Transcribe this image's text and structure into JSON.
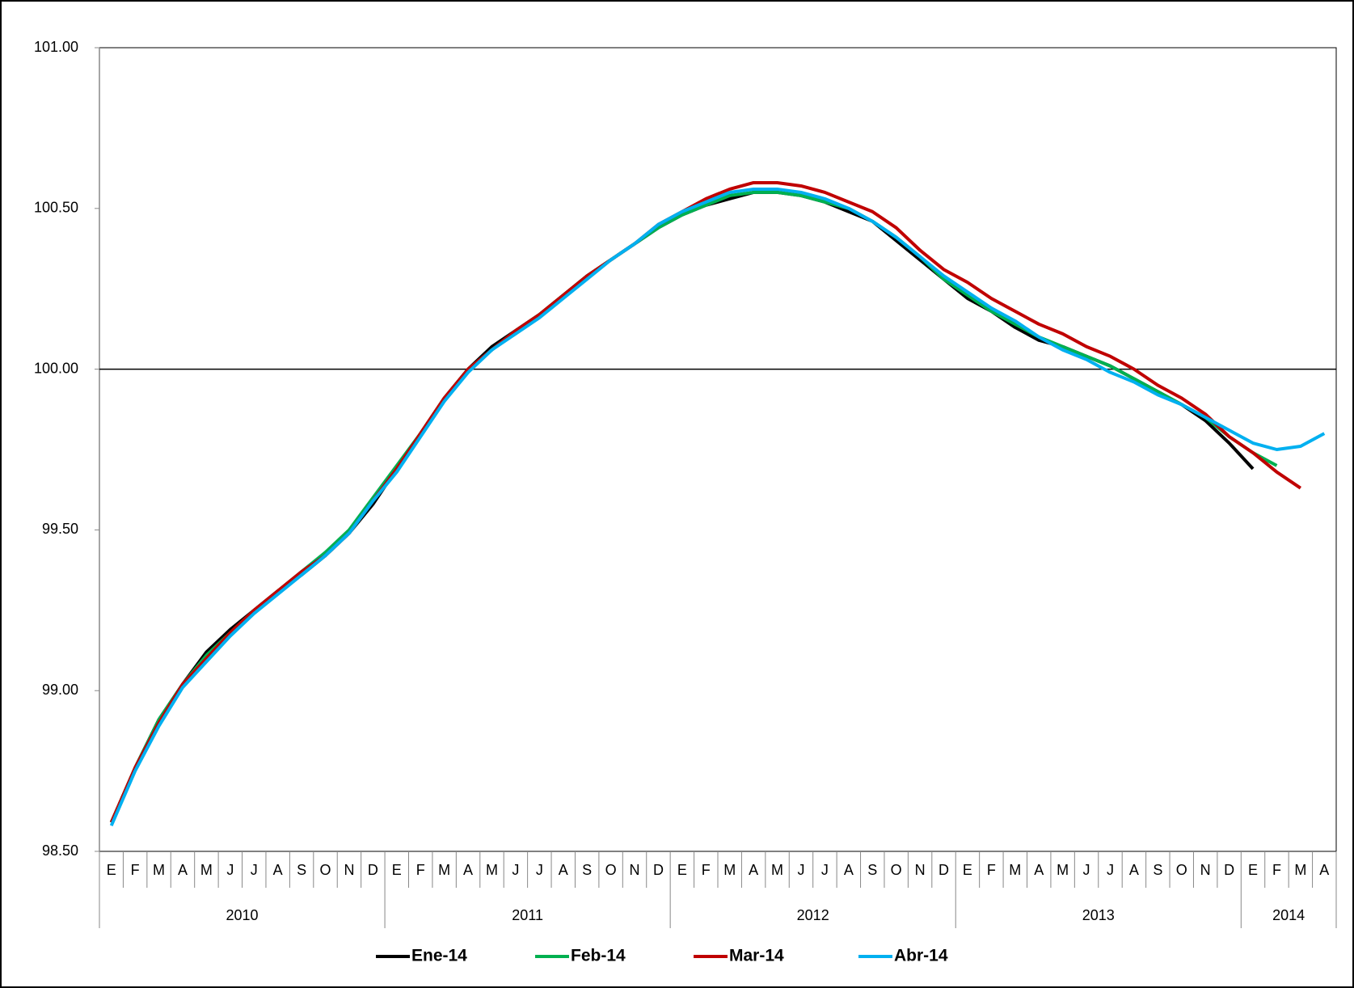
{
  "chart_data": {
    "type": "line",
    "categories": [
      "E",
      "F",
      "M",
      "A",
      "M",
      "J",
      "J",
      "A",
      "S",
      "O",
      "N",
      "D",
      "E",
      "F",
      "M",
      "A",
      "M",
      "J",
      "J",
      "A",
      "S",
      "O",
      "N",
      "D",
      "E",
      "F",
      "M",
      "A",
      "M",
      "J",
      "J",
      "A",
      "S",
      "O",
      "N",
      "D",
      "E",
      "F",
      "M",
      "A",
      "M",
      "J",
      "J",
      "A",
      "S",
      "O",
      "N",
      "D",
      "E",
      "F",
      "M",
      "A"
    ],
    "category_groups": [
      "2010",
      "2011",
      "2012",
      "2013",
      "2014"
    ],
    "ylim": [
      98.5,
      101
    ],
    "yticks": [
      {
        "value": 98.5,
        "label": "98.50"
      },
      {
        "value": 99,
        "label": "99.00"
      },
      {
        "value": 99.5,
        "label": "99.50"
      },
      {
        "value": 100,
        "label": "100.00"
      },
      {
        "value": 100.5,
        "label": "100.50"
      },
      {
        "value": 101,
        "label": "101.00"
      }
    ],
    "reference_line": 100,
    "legend": "bottom",
    "series": [
      {
        "name": "Ene-14",
        "color": "#000000",
        "values": [
          98.59,
          98.76,
          98.91,
          99.02,
          99.12,
          99.19,
          99.25,
          99.31,
          99.36,
          99.42,
          99.49,
          99.58,
          99.69,
          99.8,
          99.91,
          100.0,
          100.07,
          100.12,
          100.17,
          100.23,
          100.29,
          100.34,
          100.39,
          100.44,
          100.48,
          100.51,
          100.53,
          100.55,
          100.55,
          100.54,
          100.52,
          100.49,
          100.46,
          100.4,
          100.34,
          100.28,
          100.22,
          100.18,
          100.13,
          100.09,
          100.07,
          100.04,
          100.01,
          99.97,
          99.93,
          99.89,
          99.84,
          99.77,
          99.69,
          null,
          null,
          null
        ]
      },
      {
        "name": "Feb-14",
        "color": "#00b050",
        "values": [
          98.59,
          98.76,
          98.91,
          99.02,
          99.11,
          99.18,
          99.25,
          99.31,
          99.37,
          99.43,
          99.5,
          99.6,
          99.7,
          99.8,
          99.91,
          100.0,
          100.06,
          100.12,
          100.17,
          100.23,
          100.29,
          100.34,
          100.39,
          100.44,
          100.48,
          100.51,
          100.54,
          100.55,
          100.55,
          100.54,
          100.52,
          100.5,
          100.46,
          100.41,
          100.35,
          100.28,
          100.23,
          100.18,
          100.14,
          100.1,
          100.07,
          100.04,
          100.01,
          99.97,
          99.93,
          99.89,
          99.85,
          99.79,
          99.74,
          99.7,
          null,
          null
        ]
      },
      {
        "name": "Mar-14",
        "color": "#c00000",
        "values": [
          98.59,
          98.76,
          98.9,
          99.02,
          99.1,
          99.18,
          99.25,
          99.31,
          99.37,
          99.42,
          99.49,
          99.59,
          99.69,
          99.8,
          99.91,
          100.0,
          100.06,
          100.12,
          100.17,
          100.23,
          100.29,
          100.34,
          100.39,
          100.45,
          100.49,
          100.53,
          100.56,
          100.58,
          100.58,
          100.57,
          100.55,
          100.52,
          100.49,
          100.44,
          100.37,
          100.31,
          100.27,
          100.22,
          100.18,
          100.14,
          100.11,
          100.07,
          100.04,
          100.0,
          99.95,
          99.91,
          99.86,
          99.79,
          99.74,
          99.68,
          99.63,
          null
        ]
      },
      {
        "name": "Abr-14",
        "color": "#00b0f0",
        "values": [
          98.58,
          98.75,
          98.89,
          99.01,
          99.09,
          99.17,
          99.24,
          99.3,
          99.36,
          99.42,
          99.49,
          99.59,
          99.68,
          99.79,
          99.9,
          99.99,
          100.06,
          100.11,
          100.16,
          100.22,
          100.28,
          100.34,
          100.39,
          100.45,
          100.49,
          100.52,
          100.55,
          100.56,
          100.56,
          100.55,
          100.53,
          100.5,
          100.46,
          100.41,
          100.35,
          100.29,
          100.24,
          100.19,
          100.15,
          100.1,
          100.06,
          100.03,
          99.99,
          99.96,
          99.92,
          99.89,
          99.85,
          99.81,
          99.77,
          99.75,
          99.76,
          99.8
        ]
      }
    ]
  }
}
